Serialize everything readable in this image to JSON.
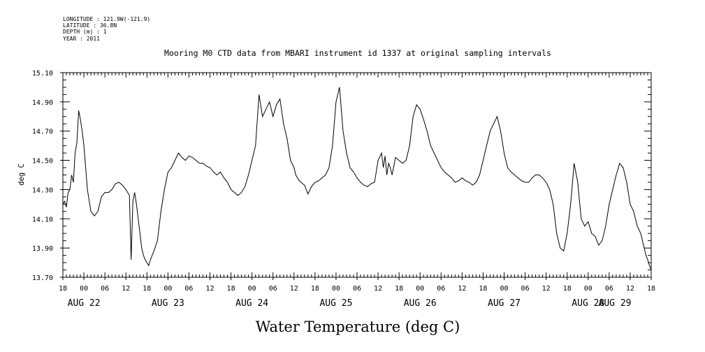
{
  "header": {
    "longitude": "LONGITUDE : 121.9W(-121.9)",
    "latitude": "LATITUDE : 36.8N",
    "depth": "DEPTH (m) : 1",
    "year": "YEAR : 2011"
  },
  "chart_data": {
    "type": "line",
    "title": "Mooring M0 CTD data from MBARI instrument id 1337 at original sampling intervals",
    "xlabel": "Water Temperature (deg C)",
    "ylabel": "deg C",
    "ylim": [
      13.7,
      15.1
    ],
    "yticks": [
      "13.70",
      "13.90",
      "14.10",
      "14.30",
      "14.50",
      "14.70",
      "14.90",
      "15.10"
    ],
    "x_unit": "hours since 2011-08-21 18:00",
    "xlim": [
      0,
      168
    ],
    "hour_tick_labels": [
      "18",
      "00",
      "06",
      "12",
      "18",
      "00",
      "06",
      "12",
      "18",
      "00",
      "06",
      "12",
      "18",
      "00",
      "06",
      "12",
      "18",
      "00",
      "06",
      "12",
      "18",
      "00",
      "06",
      "12",
      "18",
      "00",
      "06",
      "12",
      "18"
    ],
    "day_labels": [
      {
        "label": "AUG 22",
        "hour": 6
      },
      {
        "label": "AUG 23",
        "hour": 30
      },
      {
        "label": "AUG 24",
        "hour": 54
      },
      {
        "label": "AUG 25",
        "hour": 78
      },
      {
        "label": "AUG 26",
        "hour": 102
      },
      {
        "label": "AUG 27",
        "hour": 126
      },
      {
        "label": "AUG 28",
        "hour": 150
      },
      {
        "label": "AUG 29",
        "hour": 174
      }
    ],
    "grid": false,
    "series": [
      {
        "color": "#000000",
        "x": [
          0,
          0.5,
          1,
          1.5,
          2,
          2.5,
          3,
          3.5,
          4,
          4.5,
          5,
          5.5,
          6,
          7,
          8,
          9,
          10,
          11,
          12,
          13,
          14,
          15,
          16,
          17,
          18,
          19,
          19.5,
          20,
          20.5,
          21,
          21.5,
          22,
          22.5,
          23,
          23.5,
          24,
          24.5,
          25,
          25.5,
          26,
          27,
          28,
          29,
          30,
          31,
          32,
          33,
          34,
          35,
          36,
          37,
          38,
          39,
          40,
          41,
          42,
          43,
          44,
          45,
          46,
          47,
          48,
          49,
          50,
          51,
          52,
          53,
          54,
          55,
          56,
          57,
          58,
          59,
          60,
          61,
          62,
          63,
          64,
          65,
          66,
          66.5,
          67,
          67.5,
          68,
          68.5,
          69,
          69.5,
          70,
          71,
          72,
          73,
          74,
          75,
          76,
          77,
          78,
          79,
          80,
          81,
          82,
          83,
          84,
          85,
          86,
          87,
          88,
          89,
          90,
          91,
          91.5,
          92,
          92.5,
          93,
          93.5,
          94,
          95,
          96,
          97,
          98,
          99,
          100,
          101,
          102,
          103,
          104,
          105,
          106,
          107,
          108,
          109,
          110,
          111,
          112,
          113,
          114,
          115,
          116,
          117,
          118,
          119,
          120,
          121,
          122,
          123,
          124,
          125,
          126,
          127,
          128,
          129,
          130,
          131,
          132,
          133,
          134,
          135,
          136,
          137,
          138,
          139,
          140,
          141,
          142,
          143,
          144,
          145,
          146,
          147,
          148,
          149,
          150,
          151,
          152,
          153,
          154,
          155,
          156,
          157,
          158,
          159,
          160,
          161,
          162,
          163,
          164,
          165,
          166,
          166.5,
          167,
          167.5,
          168
        ],
        "y": [
          14.2,
          14.22,
          14.18,
          14.28,
          14.3,
          14.4,
          14.35,
          14.55,
          14.62,
          14.84,
          14.78,
          14.7,
          14.6,
          14.3,
          14.15,
          14.12,
          14.15,
          14.25,
          14.28,
          14.28,
          14.3,
          14.34,
          14.35,
          14.33,
          14.3,
          14.26,
          13.82,
          14.22,
          14.28,
          14.2,
          14.1,
          14.0,
          13.9,
          13.85,
          13.82,
          13.8,
          13.78,
          13.82,
          13.85,
          13.88,
          13.95,
          14.15,
          14.3,
          14.42,
          14.45,
          14.5,
          14.55,
          14.52,
          14.5,
          14.53,
          14.52,
          14.5,
          14.48,
          14.48,
          14.46,
          14.45,
          14.42,
          14.4,
          14.42,
          14.38,
          14.35,
          14.3,
          14.28,
          14.26,
          14.28,
          14.32,
          14.4,
          14.5,
          14.6,
          14.95,
          14.8,
          14.85,
          14.9,
          14.8,
          14.88,
          14.92,
          14.75,
          14.65,
          14.5,
          14.45,
          14.4,
          14.38,
          14.36,
          14.35,
          14.34,
          14.33,
          14.3,
          14.27,
          14.32,
          14.35,
          14.36,
          14.38,
          14.4,
          14.45,
          14.6,
          14.9,
          15.0,
          14.7,
          14.55,
          14.45,
          14.42,
          14.38,
          14.35,
          14.33,
          14.32,
          14.34,
          14.35,
          14.5,
          14.55,
          14.45,
          14.53,
          14.4,
          14.48,
          14.45,
          14.4,
          14.52,
          14.5,
          14.48,
          14.5,
          14.6,
          14.8,
          14.88,
          14.85,
          14.78,
          14.7,
          14.6,
          14.55,
          14.5,
          14.45,
          14.42,
          14.4,
          14.38,
          14.35,
          14.36,
          14.38,
          14.36,
          14.35,
          14.33,
          14.35,
          14.4,
          14.5,
          14.6,
          14.7,
          14.75,
          14.8,
          14.7,
          14.55,
          14.45,
          14.42,
          14.4,
          14.38,
          14.36,
          14.35,
          14.35,
          14.38,
          14.4,
          14.4,
          14.38,
          14.35,
          14.3,
          14.2,
          14.0,
          13.9,
          13.88,
          14.0,
          14.2,
          14.48,
          14.35,
          14.1,
          14.05,
          14.08,
          14.0,
          13.98,
          13.92,
          13.95,
          14.05,
          14.2,
          14.3,
          14.4,
          14.48,
          14.45,
          14.35,
          14.2,
          14.15,
          14.05,
          14.0,
          13.9,
          13.85,
          13.82,
          13.78,
          13.75
        ]
      }
    ]
  }
}
